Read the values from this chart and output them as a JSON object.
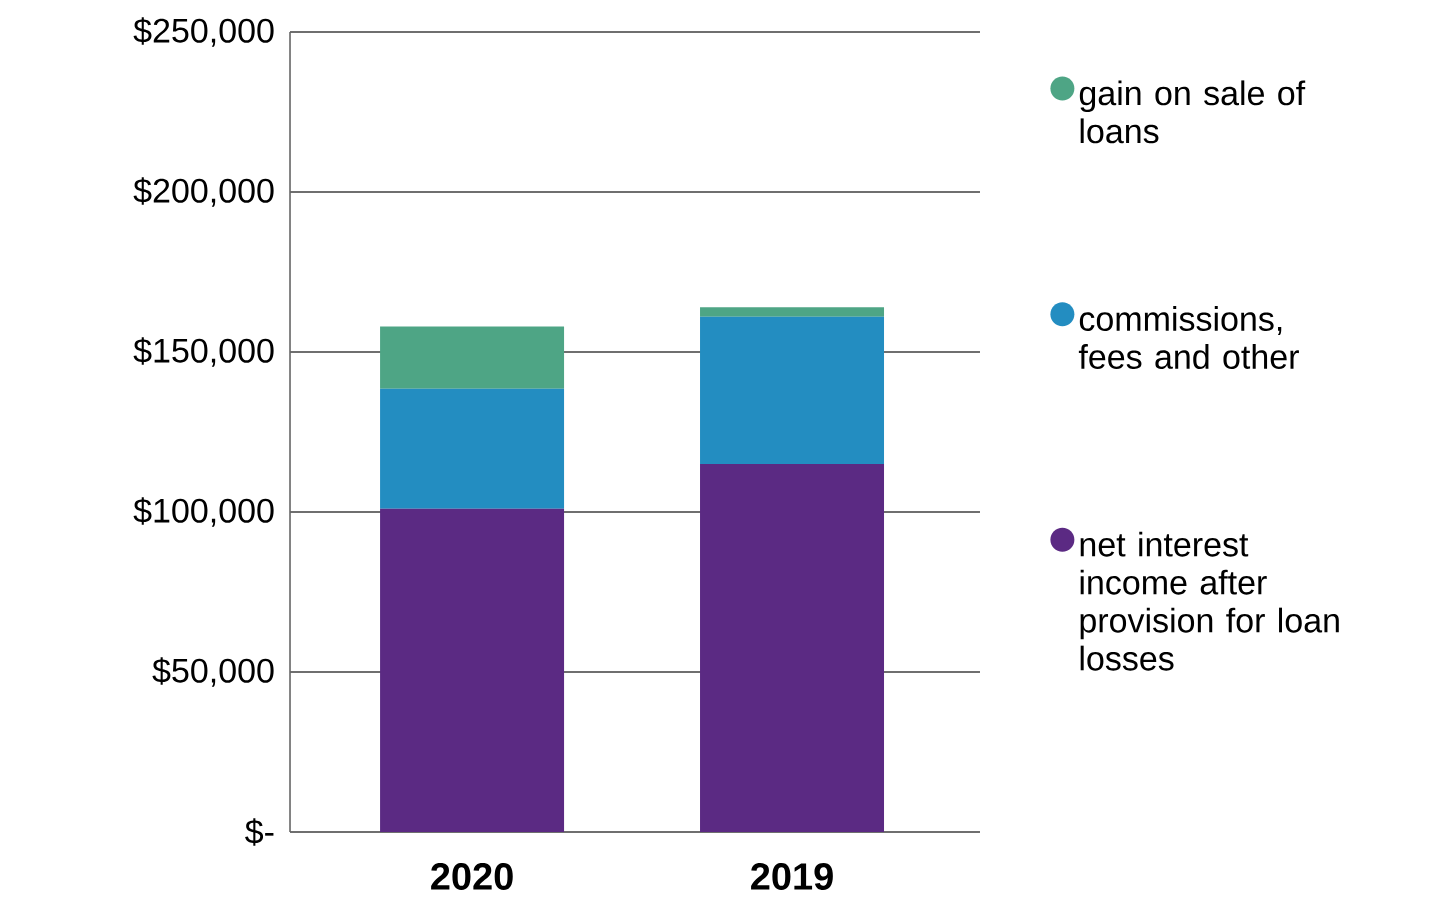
{
  "chart_data": {
    "type": "bar",
    "stacked": true,
    "categories": [
      "2020",
      "2019"
    ],
    "series": [
      {
        "name": "net interest income after provision for loan losses",
        "color": "#5b2a83",
        "values": [
          101000,
          115000
        ]
      },
      {
        "name": "commissions, fees and other",
        "color": "#238dc1",
        "values": [
          37500,
          46000
        ]
      },
      {
        "name": "gain on sale of loans",
        "color": "#4ea585",
        "values": [
          19500,
          3000
        ]
      }
    ],
    "ylim": [
      0,
      250000
    ],
    "yticks": [
      {
        "value": 0,
        "label": "$-"
      },
      {
        "value": 50000,
        "label": "$50,000"
      },
      {
        "value": 100000,
        "label": "$100,000"
      },
      {
        "value": 150000,
        "label": "$150,000"
      },
      {
        "value": 200000,
        "label": "$200,000"
      },
      {
        "value": 250000,
        "label": "$250,000"
      }
    ],
    "grid": "y",
    "legend": "right"
  }
}
